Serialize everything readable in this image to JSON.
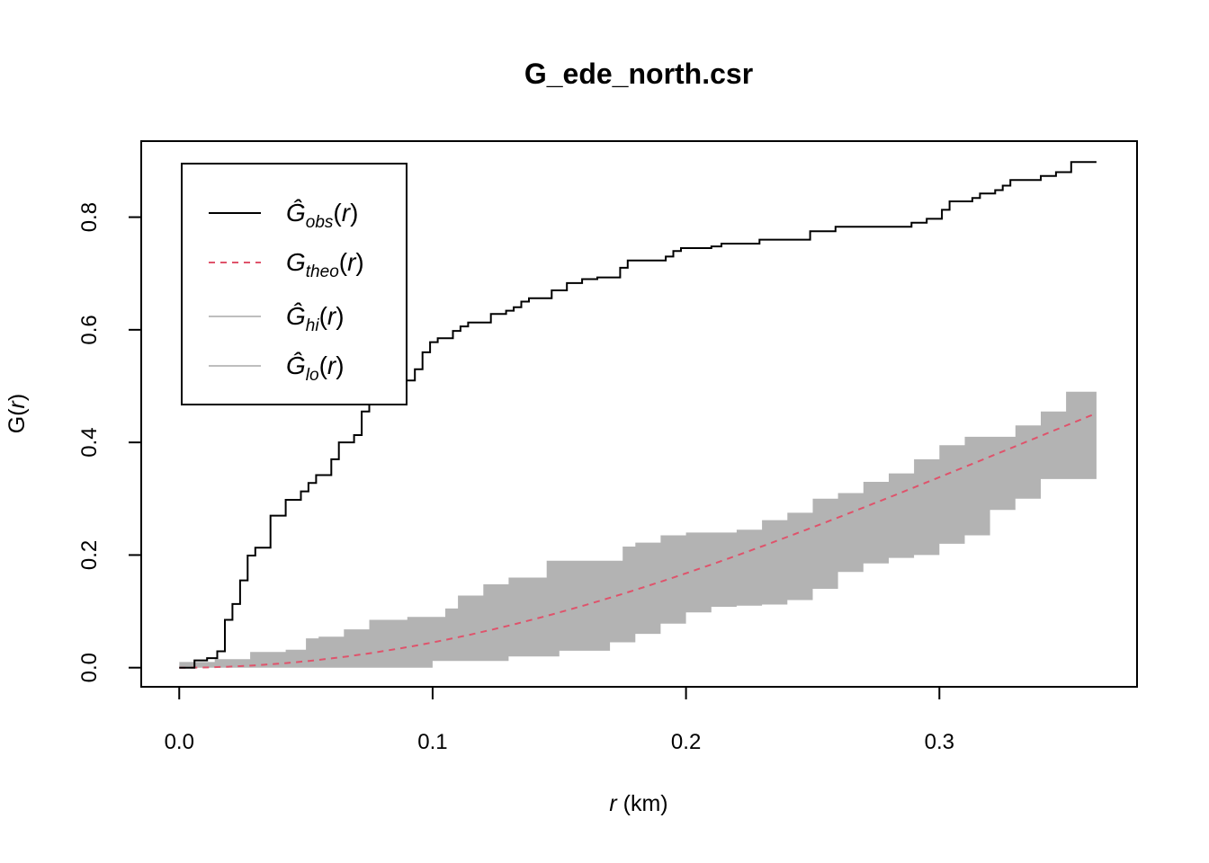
{
  "chart_data": {
    "type": "line",
    "title": "G_ede_north.csr",
    "xlabel": {
      "var": "r",
      "unit": " (km)"
    },
    "ylabel": {
      "base": "G(",
      "var": "r",
      "close": ")"
    },
    "xlim": [
      -0.015,
      0.378
    ],
    "ylim": [
      -0.034,
      0.935
    ],
    "xticks": [
      0.0,
      0.1,
      0.2,
      0.3
    ],
    "xtick_labels": [
      "0.0",
      "0.1",
      "0.2",
      "0.3"
    ],
    "yticks": [
      0.0,
      0.2,
      0.4,
      0.6,
      0.8
    ],
    "ytick_labels": [
      "0.0",
      "0.2",
      "0.4",
      "0.6",
      "0.8"
    ],
    "grid": false,
    "legend_position": "top-left",
    "colors": {
      "obs": "#000000",
      "theo": "#DF536B",
      "band": "#B3B3B3",
      "legend_band": "#BEBEBE"
    },
    "legend": [
      {
        "key": "obs",
        "base": "Ĝ",
        "sub": "obs",
        "suffix": "(r)",
        "style": "solid",
        "color": "#000000"
      },
      {
        "key": "theo",
        "base": "G",
        "sub": "theo",
        "suffix": "(r)",
        "style": "dashed",
        "color": "#DF536B"
      },
      {
        "key": "hi",
        "base": "Ĝ",
        "sub": "hi",
        "suffix": "(r)",
        "style": "solid",
        "color": "#BEBEBE"
      },
      {
        "key": "lo",
        "base": "Ĝ",
        "sub": "lo",
        "suffix": "(r)",
        "style": "solid",
        "color": "#BEBEBE"
      }
    ],
    "series": [
      {
        "name": "obs",
        "step": true,
        "x": [
          0,
          0.004,
          0.006,
          0.009,
          0.011,
          0.015,
          0.018,
          0.021,
          0.024,
          0.027,
          0.03,
          0.033,
          0.036,
          0.039,
          0.042,
          0.045,
          0.048,
          0.051,
          0.054,
          0.057,
          0.06,
          0.063,
          0.066,
          0.069,
          0.072,
          0.075,
          0.078,
          0.081,
          0.084,
          0.087,
          0.09,
          0.093,
          0.096,
          0.099,
          0.102,
          0.105,
          0.108,
          0.111,
          0.114,
          0.117,
          0.12,
          0.123,
          0.126,
          0.129,
          0.132,
          0.135,
          0.138,
          0.141,
          0.144,
          0.147,
          0.15,
          0.153,
          0.156,
          0.159,
          0.162,
          0.165,
          0.168,
          0.171,
          0.174,
          0.177,
          0.18,
          0.183,
          0.186,
          0.189,
          0.192,
          0.195,
          0.198,
          0.201,
          0.204,
          0.207,
          0.21,
          0.214,
          0.219,
          0.224,
          0.229,
          0.234,
          0.239,
          0.244,
          0.249,
          0.254,
          0.259,
          0.264,
          0.269,
          0.274,
          0.279,
          0.284,
          0.289,
          0.292,
          0.295,
          0.298,
          0.301,
          0.304,
          0.307,
          0.31,
          0.313,
          0.316,
          0.319,
          0.322,
          0.325,
          0.328,
          0.331,
          0.334,
          0.337,
          0.34,
          0.343,
          0.346,
          0.349,
          0.352,
          0.355,
          0.362
        ],
        "y": [
          0,
          0,
          0.013,
          0.013,
          0.017,
          0.029,
          0.085,
          0.113,
          0.155,
          0.199,
          0.213,
          0.213,
          0.27,
          0.27,
          0.298,
          0.298,
          0.313,
          0.328,
          0.342,
          0.342,
          0.37,
          0.4,
          0.4,
          0.413,
          0.455,
          0.47,
          0.495,
          0.495,
          0.495,
          0.51,
          0.51,
          0.53,
          0.56,
          0.578,
          0.585,
          0.585,
          0.598,
          0.606,
          0.613,
          0.613,
          0.613,
          0.628,
          0.628,
          0.634,
          0.64,
          0.65,
          0.656,
          0.656,
          0.656,
          0.67,
          0.67,
          0.683,
          0.683,
          0.69,
          0.69,
          0.693,
          0.693,
          0.693,
          0.71,
          0.723,
          0.723,
          0.723,
          0.723,
          0.723,
          0.73,
          0.74,
          0.745,
          0.745,
          0.745,
          0.745,
          0.748,
          0.753,
          0.753,
          0.753,
          0.76,
          0.76,
          0.76,
          0.76,
          0.775,
          0.775,
          0.783,
          0.783,
          0.783,
          0.783,
          0.783,
          0.783,
          0.79,
          0.79,
          0.797,
          0.797,
          0.813,
          0.828,
          0.828,
          0.828,
          0.834,
          0.842,
          0.842,
          0.848,
          0.856,
          0.866,
          0.866,
          0.866,
          0.866,
          0.873,
          0.873,
          0.88,
          0.88,
          0.898,
          0.898,
          0.898
        ]
      },
      {
        "name": "theo",
        "style": "dashed",
        "formula": "1 - exp(-lambda*pi*r^2)",
        "lambda": 1.46,
        "x_range": [
          0,
          0.362
        ]
      },
      {
        "name": "hi",
        "x": [
          0,
          0.014,
          0.028,
          0.042,
          0.05,
          0.055,
          0.065,
          0.075,
          0.09,
          0.105,
          0.11,
          0.12,
          0.13,
          0.145,
          0.16,
          0.175,
          0.18,
          0.19,
          0.2,
          0.21,
          0.22,
          0.23,
          0.24,
          0.25,
          0.26,
          0.27,
          0.28,
          0.29,
          0.3,
          0.31,
          0.32,
          0.33,
          0.34,
          0.35,
          0.362
        ],
        "y": [
          0.01,
          0.015,
          0.028,
          0.032,
          0.052,
          0.055,
          0.068,
          0.085,
          0.09,
          0.105,
          0.128,
          0.148,
          0.16,
          0.19,
          0.19,
          0.215,
          0.222,
          0.235,
          0.24,
          0.24,
          0.245,
          0.262,
          0.275,
          0.3,
          0.31,
          0.33,
          0.345,
          0.37,
          0.395,
          0.41,
          0.41,
          0.43,
          0.455,
          0.49,
          0.508
        ]
      },
      {
        "name": "lo",
        "x": [
          0,
          0.1,
          0.13,
          0.14,
          0.15,
          0.16,
          0.17,
          0.18,
          0.19,
          0.2,
          0.21,
          0.22,
          0.23,
          0.24,
          0.25,
          0.26,
          0.27,
          0.28,
          0.29,
          0.3,
          0.31,
          0.32,
          0.33,
          0.34,
          0.35,
          0.362
        ],
        "y": [
          0,
          0.012,
          0.02,
          0.02,
          0.03,
          0.03,
          0.045,
          0.06,
          0.078,
          0.098,
          0.108,
          0.11,
          0.112,
          0.12,
          0.14,
          0.17,
          0.185,
          0.195,
          0.2,
          0.22,
          0.235,
          0.28,
          0.3,
          0.335,
          0.335,
          0.335
        ]
      }
    ]
  }
}
